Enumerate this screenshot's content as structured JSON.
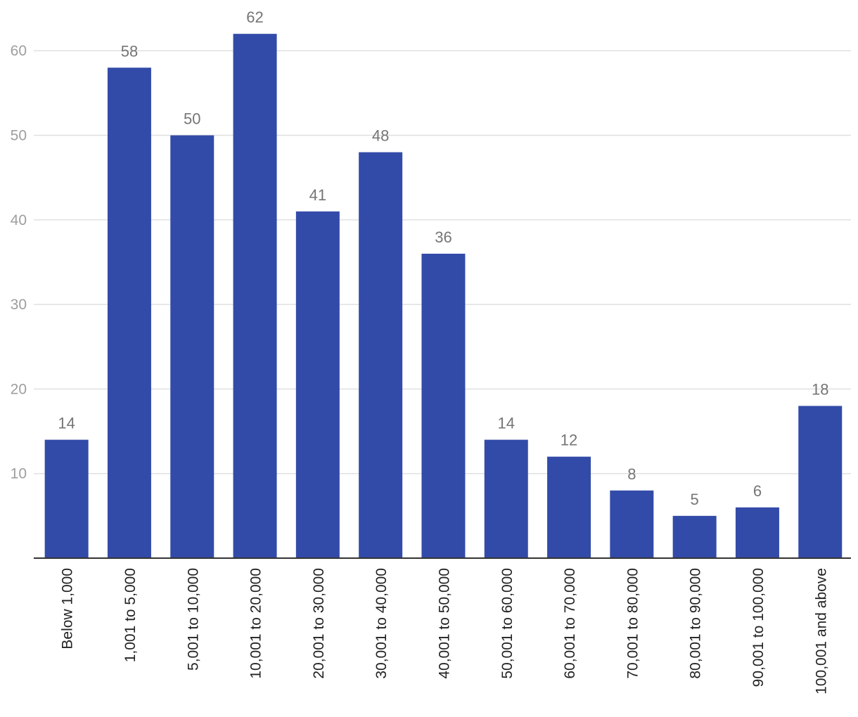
{
  "chart_data": {
    "type": "bar",
    "categories": [
      "Below 1,000",
      "1,001 to 5,000",
      "5,001 to 10,000",
      "10,001 to 20,000",
      "20,001 to 30,000",
      "30,001 to 40,000",
      "40,001 to 50,000",
      "50,001 to 60,000",
      "60,001 to 70,000",
      "70,001 to 80,000",
      "80,001 to 90,000",
      "90,001 to 100,000",
      "100,001 and above"
    ],
    "values": [
      14,
      58,
      50,
      62,
      41,
      48,
      36,
      14,
      12,
      8,
      5,
      6,
      18
    ],
    "yticks": [
      10,
      20,
      30,
      40,
      50,
      60
    ],
    "ylim": [
      0,
      64
    ],
    "grid": true,
    "data_labels": true,
    "legend": "none",
    "bar_color": "#334ba8",
    "title": "",
    "xlabel": "",
    "ylabel": ""
  }
}
